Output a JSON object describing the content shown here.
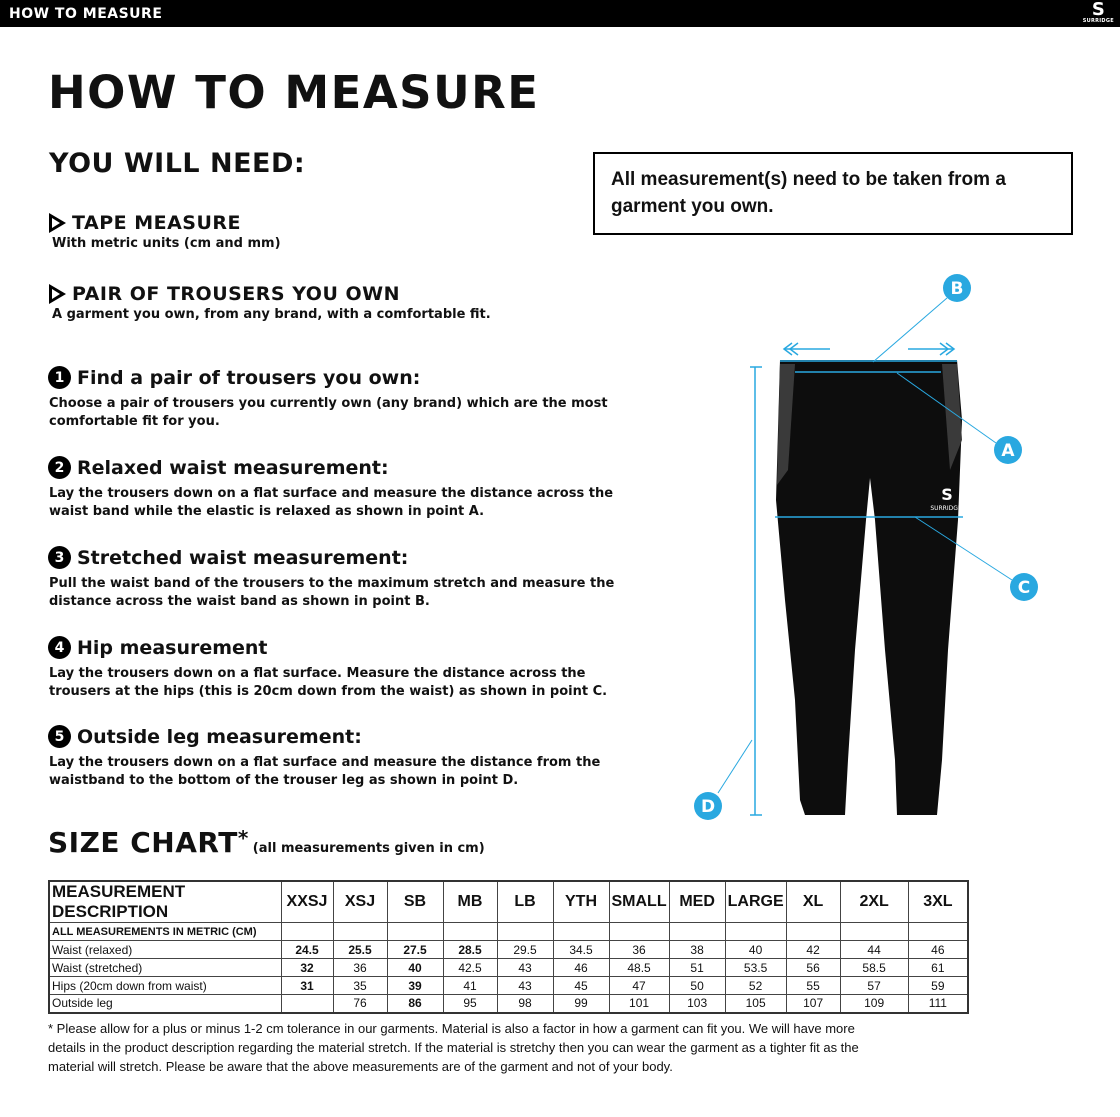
{
  "topbar": {
    "title": "HOW TO MEASURE",
    "logo": "SURRIDGE"
  },
  "title": "HOW TO MEASURE",
  "you_will_need": {
    "heading": "YOU WILL NEED:",
    "items": [
      {
        "title": "TAPE MEASURE",
        "desc": "With metric units (cm and mm)"
      },
      {
        "title": "PAIR OF TROUSERS YOU OWN",
        "desc": "A garment you own, from any brand, with a comfortable fit."
      }
    ]
  },
  "note": "All measurement(s) need to be taken from a garment you own.",
  "steps": [
    {
      "num": "1",
      "title": "Find a pair of trousers you own:",
      "desc": "Choose a pair of trousers you currently own (any brand) which are the most comfortable fit for you."
    },
    {
      "num": "2",
      "title": "Relaxed waist measurement:",
      "desc": "Lay the trousers down on a flat surface and measure the distance across the waist band while the elastic is relaxed as shown in point A."
    },
    {
      "num": "3",
      "title": "Stretched waist measurement:",
      "desc": "Pull the waist band of the trousers to the maximum stretch and measure the distance across the waist band as shown in point B."
    },
    {
      "num": "4",
      "title": "Hip measurement",
      "desc": "Lay the trousers down on a flat surface. Measure the distance across the trousers at the hips (this is 20cm down from the waist)  as shown in point C."
    },
    {
      "num": "5",
      "title": "Outside leg measurement:",
      "desc": "Lay the trousers down on a flat surface and measure the distance from the waistband to the bottom of the trouser  leg as shown in point D."
    }
  ],
  "diagram": {
    "labels": [
      "A",
      "B",
      "C",
      "D"
    ],
    "accent": "#29a8e0",
    "garment_logo": "SURRIDGE"
  },
  "size_chart": {
    "heading": "SIZE CHART",
    "asterisk": "*",
    "subheading": "(all measurements given in cm)",
    "header": [
      "MEASUREMENT DESCRIPTION",
      "XXSJ",
      "XSJ",
      "SB",
      "MB",
      "LB",
      "YTH",
      "SMALL",
      "MED",
      "LARGE",
      "XL",
      "2XL",
      "3XL"
    ],
    "subheader": "ALL MEASUREMENTS IN METRIC (CM)",
    "rows": [
      [
        "Waist (relaxed)",
        "24.5",
        "25.5",
        "27.5",
        "28.5",
        "29.5",
        "34.5",
        "36",
        "38",
        "40",
        "42",
        "44",
        "46"
      ],
      [
        "Waist (stretched)",
        "32",
        "36",
        "40",
        "42.5",
        "43",
        "46",
        "48.5",
        "51",
        "53.5",
        "56",
        "58.5",
        "61"
      ],
      [
        "Hips (20cm down from waist)",
        "31",
        "35",
        "39",
        "41",
        "43",
        "45",
        "47",
        "50",
        "52",
        "55",
        "57",
        "59"
      ],
      [
        "Outside leg",
        "",
        "76",
        "86",
        "95",
        "98",
        "99",
        "101",
        "103",
        "105",
        "107",
        "109",
        "111"
      ]
    ]
  },
  "footnote": "* Please allow for a plus or minus 1-2 cm tolerance in our garments. Material is also a factor in how a garment can fit you. We will have more details in the product description regarding the material stretch.  If the material is stretchy then you can wear the garment as a tighter fit as the material will stretch.  Please be aware that the above measurements are of the garment and not of your body."
}
